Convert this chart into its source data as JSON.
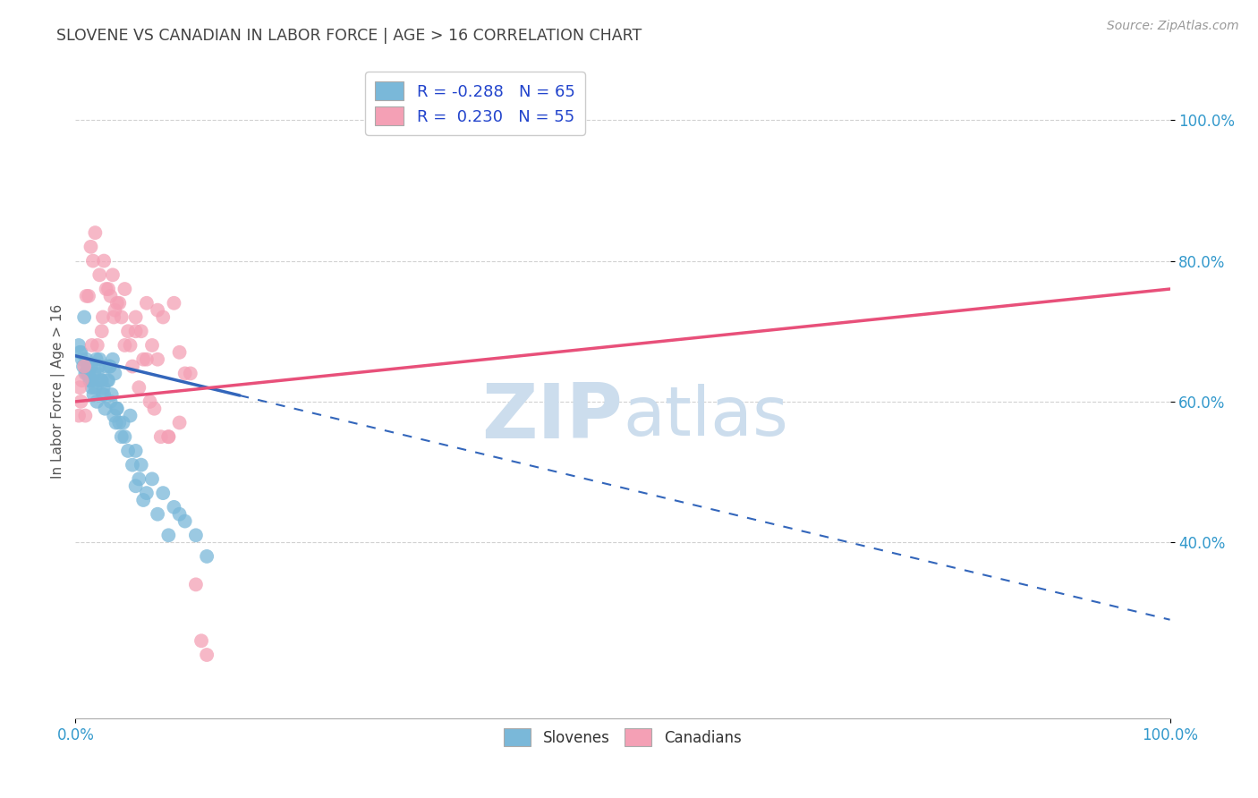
{
  "title": "SLOVENE VS CANADIAN IN LABOR FORCE | AGE > 16 CORRELATION CHART",
  "source": "Source: ZipAtlas.com",
  "ylabel": "In Labor Force | Age > 16",
  "legend_label1": "Slovenes",
  "legend_label2": "Canadians",
  "blue_color": "#7ab8d9",
  "pink_color": "#f4a0b5",
  "blue_line_color": "#3366bb",
  "pink_line_color": "#e8507a",
  "background_color": "#ffffff",
  "grid_color": "#cccccc",
  "watermark_color": "#ccdded",
  "title_color": "#444444",
  "axis_label_color": "#3399cc",
  "R_blue": -0.288,
  "N_blue": 65,
  "R_pink": 0.23,
  "N_pink": 55,
  "xlim": [
    0,
    100
  ],
  "ylim": [
    15,
    108
  ],
  "y_ticks": [
    40,
    60,
    80,
    100
  ],
  "x_ticks": [
    0,
    100
  ],
  "blue_line_x0": 0,
  "blue_line_y0": 66.5,
  "blue_line_x1": 100,
  "blue_line_y1": 29,
  "blue_solid_end": 15,
  "pink_line_x0": 0,
  "pink_line_y0": 60,
  "pink_line_x1": 100,
  "pink_line_y1": 76,
  "blue_scatter_x": [
    0.5,
    0.8,
    1.0,
    1.2,
    1.4,
    1.6,
    1.8,
    2.0,
    2.2,
    2.4,
    2.6,
    2.8,
    3.0,
    3.2,
    3.4,
    3.6,
    3.8,
    4.0,
    4.5,
    5.0,
    5.5,
    6.0,
    7.0,
    8.0,
    9.0,
    10.0,
    11.0,
    12.0,
    0.3,
    0.6,
    0.9,
    1.1,
    1.3,
    1.5,
    1.7,
    1.9,
    2.1,
    2.3,
    2.5,
    2.7,
    2.9,
    3.1,
    3.3,
    3.5,
    3.7,
    4.2,
    4.8,
    5.2,
    5.8,
    6.5,
    7.5,
    8.5,
    0.4,
    0.7,
    1.05,
    1.35,
    1.65,
    1.95,
    2.55,
    3.15,
    3.75,
    4.35,
    5.5,
    6.2,
    9.5
  ],
  "blue_scatter_y": [
    67,
    72,
    66,
    64,
    65,
    63,
    62,
    64,
    66,
    63,
    61,
    65,
    63,
    60,
    66,
    64,
    59,
    57,
    55,
    58,
    53,
    51,
    49,
    47,
    45,
    43,
    41,
    38,
    68,
    66,
    64,
    65,
    63,
    62,
    64,
    66,
    65,
    63,
    61,
    59,
    63,
    65,
    61,
    58,
    57,
    55,
    53,
    51,
    49,
    47,
    44,
    41,
    67,
    65,
    64,
    63,
    61,
    60,
    62,
    65,
    59,
    57,
    48,
    46,
    44
  ],
  "pink_scatter_x": [
    0.4,
    0.8,
    1.2,
    1.6,
    2.0,
    2.4,
    2.8,
    3.2,
    3.6,
    4.0,
    4.5,
    5.0,
    5.5,
    6.0,
    6.5,
    7.0,
    7.5,
    8.0,
    9.0,
    10.0,
    11.0,
    12.0,
    0.3,
    0.6,
    1.0,
    1.4,
    1.8,
    2.2,
    2.6,
    3.0,
    3.4,
    3.8,
    4.2,
    4.8,
    5.2,
    5.8,
    6.2,
    6.8,
    7.2,
    7.8,
    8.5,
    9.5,
    0.5,
    0.9,
    1.5,
    2.5,
    3.5,
    4.5,
    5.5,
    6.5,
    7.5,
    8.5,
    9.5,
    10.5,
    11.5
  ],
  "pink_scatter_y": [
    62,
    65,
    75,
    80,
    68,
    70,
    76,
    75,
    73,
    74,
    76,
    68,
    72,
    70,
    74,
    68,
    66,
    72,
    74,
    64,
    34,
    24,
    58,
    63,
    75,
    82,
    84,
    78,
    80,
    76,
    78,
    74,
    72,
    70,
    65,
    62,
    66,
    60,
    59,
    55,
    55,
    57,
    60,
    58,
    68,
    72,
    72,
    68,
    70,
    66,
    73,
    55,
    67,
    64,
    26
  ]
}
